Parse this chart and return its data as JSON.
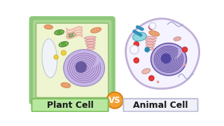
{
  "bg_color": "#ffffff",
  "title_plant": "Plant Cell",
  "title_animal": "Animal Cell",
  "vs_text": "VS",
  "plant_wall_color": "#8ec87a",
  "plant_wall_inner_color": "#a8d890",
  "plant_cytoplasm_color": "#eef5d0",
  "plant_border_color": "#90b878",
  "animal_border_color": "#c0b0d8",
  "animal_cytoplasm_color": "#f5f3ff",
  "nucleus_fill_plant": "#c8b8e8",
  "nucleus_stroke_plant": "#a898c8",
  "chromatin_color_plant": "#9878b8",
  "nucleolus_plant": "#6858a0",
  "nucleus_fill_animal": "#c0b0e0",
  "nucleus_stroke_animal": "#6858a8",
  "chromatin_color_animal": "#5848a0",
  "nucleolus_animal": "#5048a0",
  "vacuole_fill": "#f0f4f8",
  "vacuole_stroke": "#c8d0d8",
  "chloroplast_fill": "#78c050",
  "chloroplast_stroke": "#508040",
  "mito_fill": "#f0a878",
  "mito_stroke": "#d08050",
  "golgi_fill": "#f0c0c0",
  "golgi_stroke": "#d09090",
  "vs_circle_color": "#f4a030",
  "lyso_fill": "#e83838",
  "lyso_stroke": "#c02020",
  "centriole_fill": "#40a0c0",
  "er_fill": "#90d8e0",
  "er_stroke": "#50a8b8",
  "vesicle_fill": "#f8f8ff",
  "vesicle_stroke": "#c8c8e0",
  "pink_mito_fill": "#f0b8b0",
  "pink_mito_stroke": "#c89090",
  "label_plant_fill": "#b8e8a0",
  "label_plant_stroke": "#80c060",
  "label_animal_fill": "#f0f0f8",
  "label_animal_stroke": "#c0c0d8"
}
